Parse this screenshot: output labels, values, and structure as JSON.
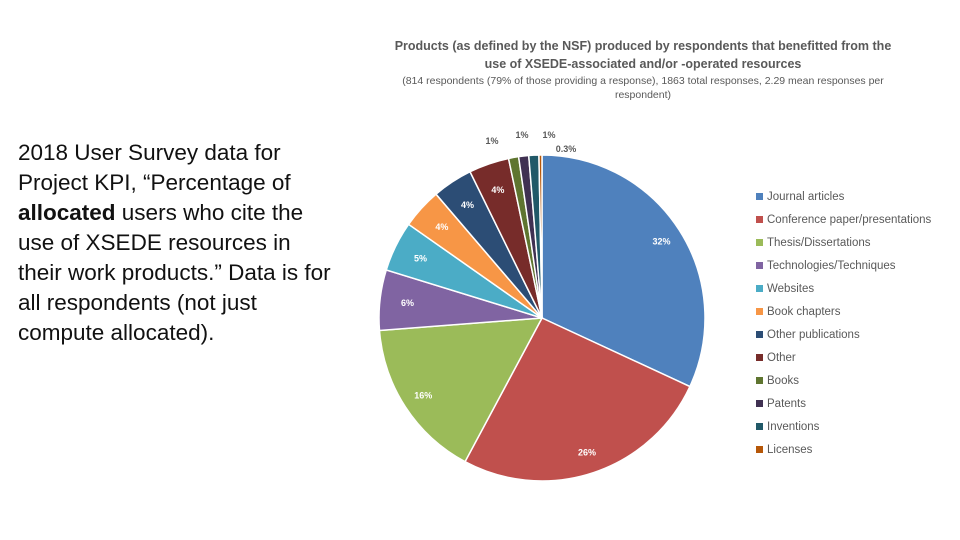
{
  "slide": {
    "text_part1": "2018 User Survey data for Project KPI, “Percentage of ",
    "text_bold": "allocated",
    "text_part2": " users who cite the use of XSEDE resources in their work products.” Data is for all respondents (not just compute allocated)."
  },
  "chart_data": {
    "type": "pie",
    "title": "Products (as defined by the NSF) produced by respondents that benefitted from the use of XSEDE-associated and/or -operated resources",
    "subtitle": "(814 respondents (79% of those providing a response), 1863 total responses, 2.29 mean responses per respondent)",
    "slices": [
      {
        "name": "Journal articles",
        "value": 32,
        "label": "32%",
        "color": "#4F81BD"
      },
      {
        "name": "Conference paper/presentations",
        "value": 26,
        "label": "26%",
        "color": "#C0504D"
      },
      {
        "name": "Thesis/Dissertations",
        "value": 16,
        "label": "16%",
        "color": "#9BBB59"
      },
      {
        "name": "Technologies/Techniques",
        "value": 6,
        "label": "6%",
        "color": "#8064A2"
      },
      {
        "name": "Websites",
        "value": 5,
        "label": "5%",
        "color": "#4BACC6"
      },
      {
        "name": "Book chapters",
        "value": 4,
        "label": "4%",
        "color": "#F79646"
      },
      {
        "name": "Other publications",
        "value": 4,
        "label": "4%",
        "color": "#2C4D75"
      },
      {
        "name": "Other",
        "value": 4,
        "label": "4%",
        "color": "#772C2A"
      },
      {
        "name": "Books",
        "value": 1,
        "label": "1%",
        "color": "#5F7530"
      },
      {
        "name": "Patents",
        "value": 1,
        "label": "1%",
        "color": "#403152"
      },
      {
        "name": "Inventions",
        "value": 1,
        "label": "1%",
        "color": "#215968"
      },
      {
        "name": "Licenses",
        "value": 0.3,
        "label": "0.3%",
        "color": "#B65708"
      }
    ]
  }
}
